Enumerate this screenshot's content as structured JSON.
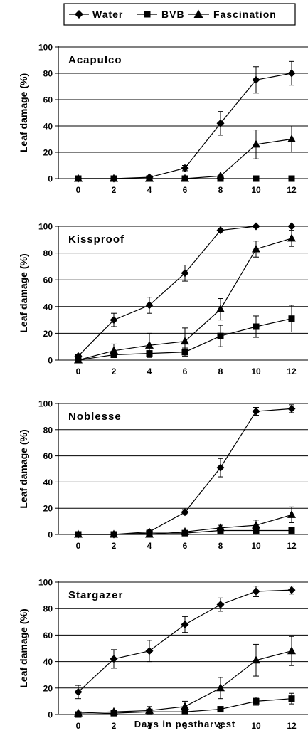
{
  "legend": [
    {
      "label": "Water",
      "marker": "diamond"
    },
    {
      "label": "BVB",
      "marker": "square"
    },
    {
      "label": "Fascination",
      "marker": "triangle"
    }
  ],
  "x_axis_title": "Days in postharvest",
  "chart_data": [
    {
      "type": "line",
      "title": "Acapulco",
      "ylabel": "Leaf damage (%)",
      "x": [
        0,
        2,
        4,
        6,
        8,
        10,
        12
      ],
      "ylim": [
        0,
        100
      ],
      "yticks": [
        0,
        20,
        40,
        60,
        80,
        100
      ],
      "grid": true,
      "series": [
        {
          "name": "Water",
          "values": [
            0,
            0,
            1,
            8,
            42,
            75,
            80
          ],
          "error": [
            0,
            0,
            0,
            2,
            9,
            10,
            9
          ]
        },
        {
          "name": "BVB",
          "values": [
            0,
            0,
            0,
            0,
            0,
            0,
            0
          ],
          "error": [
            0,
            0,
            0,
            0,
            0,
            0,
            0
          ]
        },
        {
          "name": "Fascination",
          "values": [
            0,
            0,
            0,
            0,
            2,
            26,
            30
          ],
          "error": [
            0,
            0,
            0,
            0,
            0,
            11,
            10
          ]
        }
      ]
    },
    {
      "type": "line",
      "title": "Kissproof",
      "ylabel": "Leaf damage (%)",
      "x": [
        0,
        2,
        4,
        6,
        8,
        10,
        12
      ],
      "ylim": [
        0,
        100
      ],
      "yticks": [
        0,
        20,
        40,
        60,
        80,
        100
      ],
      "grid": true,
      "series": [
        {
          "name": "Water",
          "values": [
            3,
            30,
            41,
            65,
            97,
            100,
            100
          ],
          "error": [
            1,
            5,
            6,
            6,
            1,
            0,
            0
          ]
        },
        {
          "name": "BVB",
          "values": [
            0,
            4,
            5,
            6,
            18,
            25,
            31
          ],
          "error": [
            0,
            2,
            2,
            3,
            8,
            8,
            10
          ]
        },
        {
          "name": "Fascination",
          "values": [
            0,
            7,
            11,
            14,
            38,
            83,
            91
          ],
          "error": [
            0,
            5,
            9,
            10,
            8,
            6,
            6
          ]
        }
      ]
    },
    {
      "type": "line",
      "title": "Noblesse",
      "ylabel": "Leaf damage (%)",
      "x": [
        0,
        2,
        4,
        6,
        8,
        10,
        12
      ],
      "ylim": [
        0,
        100
      ],
      "yticks": [
        0,
        20,
        40,
        60,
        80,
        100
      ],
      "grid": true,
      "series": [
        {
          "name": "Water",
          "values": [
            0,
            0,
            2,
            17,
            51,
            94,
            96
          ],
          "error": [
            0,
            0,
            0,
            2,
            7,
            3,
            3
          ]
        },
        {
          "name": "BVB",
          "values": [
            0,
            0,
            1,
            1,
            3,
            3,
            3
          ],
          "error": [
            0,
            0,
            0,
            0,
            1,
            1,
            0
          ]
        },
        {
          "name": "Fascination",
          "values": [
            0,
            0,
            0,
            2,
            5,
            7,
            15
          ],
          "error": [
            0,
            0,
            0,
            0,
            2,
            4,
            6
          ]
        }
      ]
    },
    {
      "type": "line",
      "title": "Stargazer",
      "ylabel": "Leaf damage (%)",
      "x": [
        0,
        2,
        4,
        6,
        8,
        10,
        12
      ],
      "ylim": [
        0,
        100
      ],
      "yticks": [
        0,
        20,
        40,
        60,
        80,
        100
      ],
      "grid": true,
      "series": [
        {
          "name": "Water",
          "values": [
            17,
            42,
            48,
            68,
            83,
            93,
            94
          ],
          "error": [
            5,
            7,
            8,
            6,
            5,
            4,
            3
          ]
        },
        {
          "name": "BVB",
          "values": [
            0,
            1,
            2,
            2,
            4,
            10,
            12
          ],
          "error": [
            0,
            0,
            1,
            1,
            1,
            3,
            4
          ]
        },
        {
          "name": "Fascination",
          "values": [
            1,
            2,
            3,
            6,
            20,
            41,
            48
          ],
          "error": [
            0,
            1,
            3,
            4,
            8,
            12,
            11
          ]
        }
      ]
    }
  ]
}
